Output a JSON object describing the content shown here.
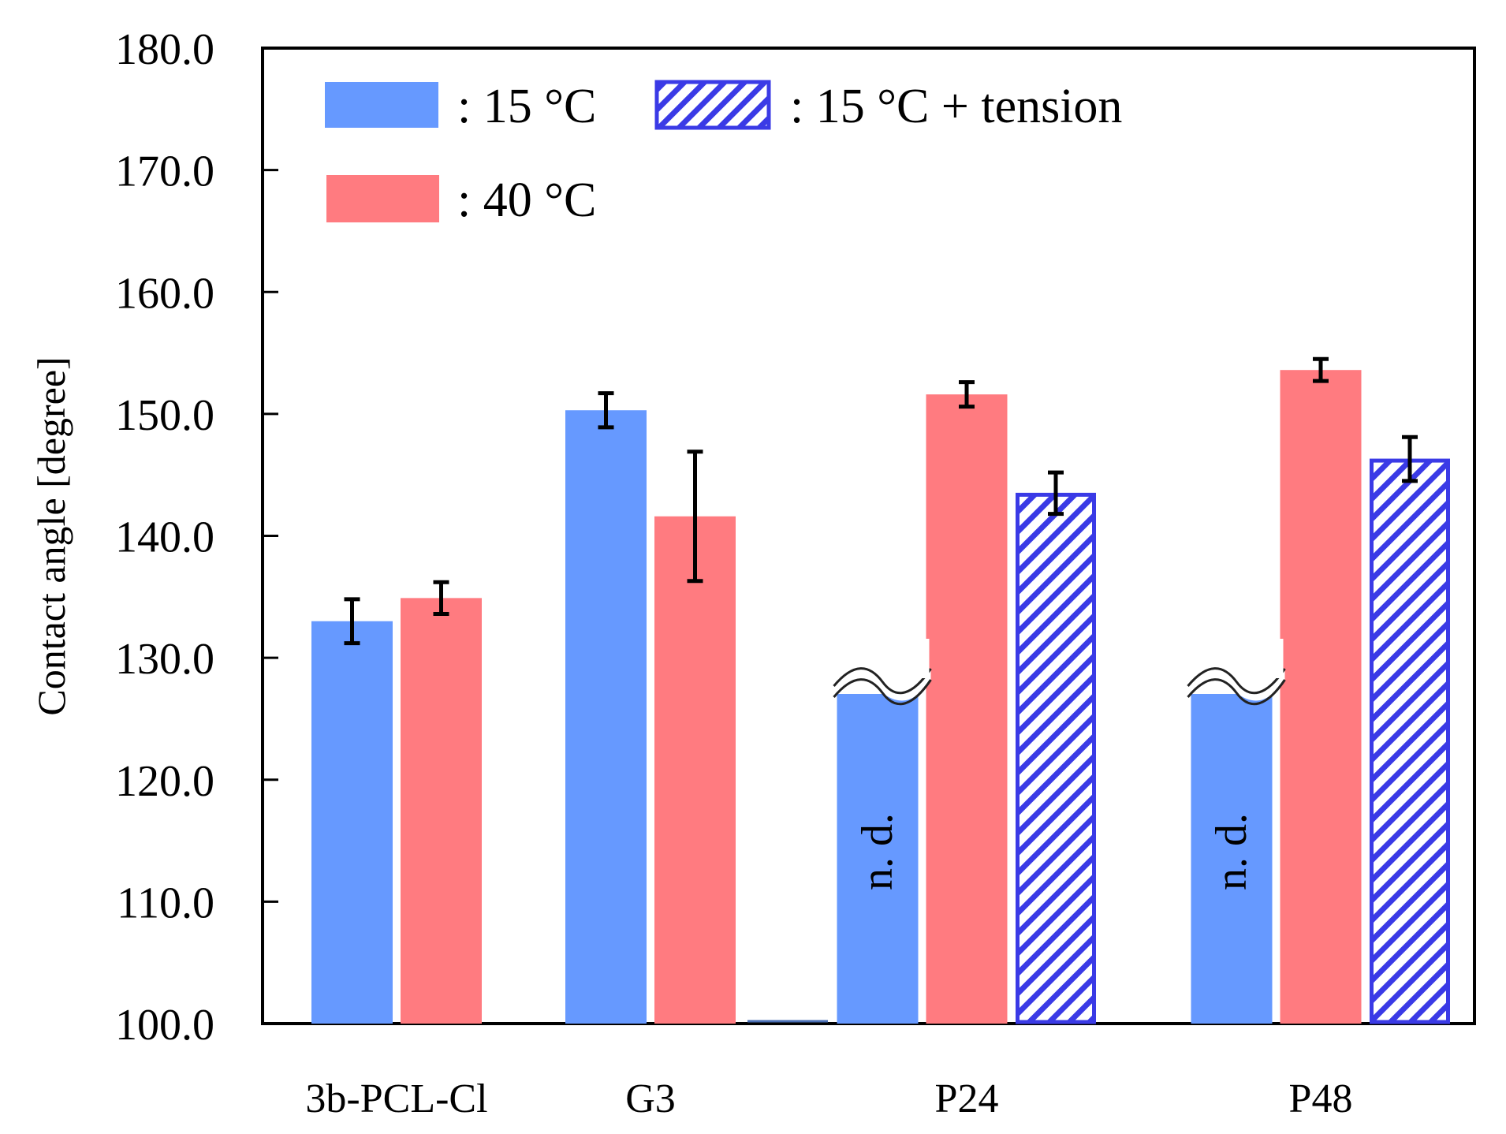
{
  "chart_data": {
    "type": "bar",
    "title": "",
    "xlabel": "",
    "ylabel": "Contact angle [degree]",
    "ylim": [
      100.0,
      180.0
    ],
    "yticks": [
      100.0,
      110.0,
      120.0,
      130.0,
      140.0,
      150.0,
      160.0,
      170.0,
      180.0
    ],
    "categories": [
      "3b-PCL-Cl",
      "G3",
      "P24",
      "P48"
    ],
    "colors": {
      "s15": "#6699FF",
      "s40": "#FF7B80",
      "tension": "#3A3AE6"
    },
    "series": [
      {
        "key": "s15",
        "name": ": 15 °C",
        "values": [
          133.0,
          150.3,
          null,
          null
        ],
        "errors": [
          1.8,
          1.4,
          null,
          null
        ]
      },
      {
        "key": "s40",
        "name": ": 40 °C",
        "values": [
          134.9,
          141.6,
          151.6,
          153.6
        ],
        "errors": [
          1.3,
          5.3,
          1.0,
          0.9
        ]
      },
      {
        "key": "tension",
        "name": ": 15 °C + tension",
        "values": [
          null,
          null,
          143.5,
          146.3
        ],
        "errors": [
          null,
          null,
          1.7,
          1.8
        ]
      }
    ],
    "annotations": {
      "not_determined": "n. d."
    }
  }
}
